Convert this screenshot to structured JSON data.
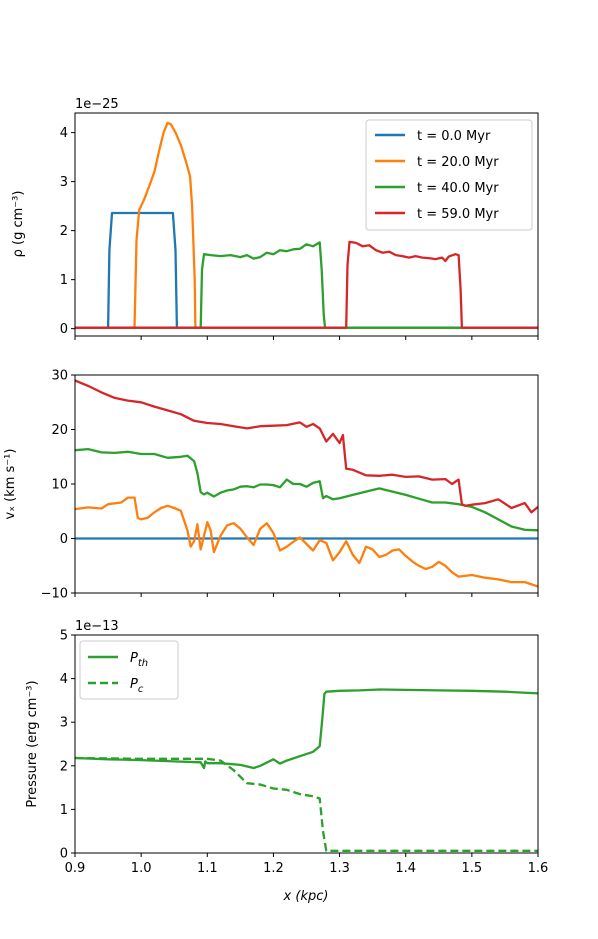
{
  "colors": {
    "blue": "#1f77b4",
    "orange": "#ff7f0e",
    "green": "#2ca02c",
    "red": "#d62728"
  },
  "xaxis": {
    "label": "x (kpc)",
    "ticks": [
      "0.9",
      "1.0",
      "1.1",
      "1.2",
      "1.3",
      "1.4",
      "1.5",
      "1.6"
    ],
    "lim": [
      0.9,
      1.6
    ]
  },
  "chart_data": [
    {
      "type": "line",
      "ylabel": "ρ (g cm⁻³)",
      "offset_text": "1e−25",
      "ylim": [
        -0.15,
        4.4
      ],
      "yticks": [
        0,
        1,
        2,
        3,
        4
      ],
      "ytick_labels": [
        "0",
        "1",
        "2",
        "3",
        "4"
      ],
      "grid": false,
      "legend_position": "upper right",
      "series": [
        {
          "name": "t = 0.0 Myr",
          "color": "#1f77b4",
          "style": "solid",
          "x": [
            0.9,
            0.95,
            0.952,
            0.956,
            1.048,
            1.052,
            1.054,
            1.6
          ],
          "y": [
            0.02,
            0.02,
            1.6,
            2.36,
            2.36,
            1.6,
            0.02,
            0.02
          ]
        },
        {
          "name": "t = 20.0 Myr",
          "color": "#ff7f0e",
          "style": "solid",
          "x": [
            0.9,
            0.99,
            0.993,
            0.997,
            1.005,
            1.012,
            1.02,
            1.027,
            1.034,
            1.04,
            1.045,
            1.052,
            1.06,
            1.068,
            1.074,
            1.077,
            1.081,
            1.082,
            1.6
          ],
          "y": [
            0.02,
            0.02,
            1.8,
            2.42,
            2.65,
            2.9,
            3.2,
            3.62,
            4.0,
            4.2,
            4.17,
            4.0,
            3.75,
            3.4,
            3.1,
            2.5,
            1.0,
            0.02,
            0.02
          ]
        },
        {
          "name": "t = 40.0 Myr",
          "color": "#2ca02c",
          "style": "solid",
          "x": [
            0.9,
            1.09,
            1.092,
            1.095,
            1.105,
            1.12,
            1.135,
            1.15,
            1.16,
            1.17,
            1.18,
            1.19,
            1.2,
            1.21,
            1.22,
            1.23,
            1.24,
            1.25,
            1.26,
            1.27,
            1.273,
            1.276,
            1.278,
            1.6
          ],
          "y": [
            0.02,
            0.02,
            1.2,
            1.52,
            1.5,
            1.48,
            1.5,
            1.46,
            1.5,
            1.43,
            1.46,
            1.55,
            1.52,
            1.6,
            1.58,
            1.62,
            1.63,
            1.72,
            1.68,
            1.76,
            1.2,
            0.3,
            0.02,
            0.02
          ]
        },
        {
          "name": "t = 59.0 Myr",
          "color": "#d62728",
          "style": "solid",
          "x": [
            0.9,
            1.31,
            1.312,
            1.315,
            1.325,
            1.335,
            1.345,
            1.355,
            1.365,
            1.375,
            1.385,
            1.395,
            1.405,
            1.415,
            1.425,
            1.435,
            1.445,
            1.455,
            1.46,
            1.465,
            1.475,
            1.48,
            1.483,
            1.485,
            1.6
          ],
          "y": [
            0.02,
            0.02,
            1.3,
            1.77,
            1.75,
            1.68,
            1.7,
            1.6,
            1.55,
            1.57,
            1.5,
            1.48,
            1.45,
            1.48,
            1.45,
            1.44,
            1.42,
            1.45,
            1.38,
            1.47,
            1.52,
            1.5,
            0.8,
            0.02,
            0.02
          ]
        }
      ]
    },
    {
      "type": "line",
      "ylabel": "vₓ (km s⁻¹)",
      "ylim": [
        -10,
        30
      ],
      "yticks": [
        -10,
        0,
        10,
        20,
        30
      ],
      "ytick_labels": [
        "−10",
        "0",
        "10",
        "20",
        "30"
      ],
      "grid": false,
      "series": [
        {
          "color": "#1f77b4",
          "style": "solid",
          "x": [
            0.9,
            1.6
          ],
          "y": [
            0,
            0
          ]
        },
        {
          "color": "#ff7f0e",
          "style": "solid",
          "x": [
            0.9,
            0.92,
            0.94,
            0.95,
            0.97,
            0.98,
            0.99,
            0.995,
            1.0,
            1.01,
            1.02,
            1.03,
            1.04,
            1.05,
            1.06,
            1.07,
            1.075,
            1.08,
            1.085,
            1.09,
            1.095,
            1.1,
            1.105,
            1.11,
            1.12,
            1.13,
            1.14,
            1.15,
            1.16,
            1.17,
            1.18,
            1.19,
            1.2,
            1.21,
            1.22,
            1.23,
            1.24,
            1.25,
            1.26,
            1.27,
            1.28,
            1.29,
            1.3,
            1.31,
            1.32,
            1.33,
            1.34,
            1.35,
            1.36,
            1.37,
            1.38,
            1.39,
            1.4,
            1.41,
            1.42,
            1.43,
            1.44,
            1.45,
            1.46,
            1.47,
            1.48,
            1.5,
            1.52,
            1.54,
            1.56,
            1.58,
            1.6
          ],
          "y": [
            5.4,
            5.7,
            5.5,
            6.3,
            6.6,
            7.5,
            7.5,
            3.8,
            3.5,
            3.8,
            4.8,
            5.6,
            6.0,
            5.6,
            5.1,
            1.5,
            -1.5,
            -0.5,
            2.6,
            -2.0,
            0.5,
            3.0,
            1.5,
            -2.5,
            0.5,
            2.4,
            2.8,
            1.8,
            0.2,
            -1.2,
            1.8,
            2.8,
            1.0,
            -2.2,
            -1.5,
            -0.6,
            0.2,
            -1.0,
            -2.2,
            -0.3,
            -0.8,
            -4.0,
            -2.5,
            -0.5,
            -3.0,
            -4.5,
            -1.5,
            -2.0,
            -3.4,
            -3.0,
            -2.2,
            -2.0,
            -3.2,
            -4.2,
            -5.0,
            -5.6,
            -5.2,
            -4.3,
            -5.0,
            -6.2,
            -7.0,
            -6.7,
            -7.2,
            -7.5,
            -8.0,
            -8.0,
            -8.8
          ]
        },
        {
          "color": "#2ca02c",
          "style": "solid",
          "x": [
            0.9,
            0.92,
            0.94,
            0.96,
            0.98,
            1.0,
            1.02,
            1.04,
            1.06,
            1.07,
            1.08,
            1.085,
            1.09,
            1.095,
            1.1,
            1.11,
            1.12,
            1.13,
            1.14,
            1.15,
            1.16,
            1.17,
            1.18,
            1.19,
            1.2,
            1.21,
            1.22,
            1.23,
            1.24,
            1.25,
            1.26,
            1.27,
            1.275,
            1.28,
            1.29,
            1.3,
            1.32,
            1.34,
            1.36,
            1.38,
            1.4,
            1.42,
            1.44,
            1.46,
            1.48,
            1.5,
            1.52,
            1.54,
            1.56,
            1.58,
            1.6
          ],
          "y": [
            16.2,
            16.4,
            15.8,
            15.7,
            15.9,
            15.5,
            15.5,
            14.8,
            15.0,
            15.2,
            14.2,
            12.0,
            8.5,
            8.1,
            8.4,
            7.7,
            8.4,
            8.8,
            9.0,
            9.5,
            9.6,
            9.4,
            9.9,
            9.9,
            9.8,
            9.4,
            10.8,
            10.0,
            10.0,
            9.5,
            10.2,
            10.5,
            7.4,
            7.8,
            7.2,
            7.4,
            8.0,
            8.6,
            9.2,
            8.6,
            8.0,
            7.3,
            6.6,
            6.6,
            6.3,
            5.8,
            4.8,
            3.5,
            2.2,
            1.6,
            1.5
          ]
        },
        {
          "color": "#d62728",
          "style": "solid",
          "x": [
            0.9,
            0.92,
            0.94,
            0.96,
            0.98,
            1.0,
            1.02,
            1.04,
            1.06,
            1.08,
            1.1,
            1.12,
            1.14,
            1.16,
            1.18,
            1.2,
            1.22,
            1.24,
            1.25,
            1.26,
            1.27,
            1.28,
            1.29,
            1.3,
            1.305,
            1.31,
            1.32,
            1.34,
            1.36,
            1.38,
            1.4,
            1.42,
            1.44,
            1.46,
            1.47,
            1.48,
            1.485,
            1.49,
            1.5,
            1.52,
            1.54,
            1.56,
            1.58,
            1.59,
            1.6
          ],
          "y": [
            29.0,
            28.0,
            26.8,
            25.8,
            25.3,
            25.0,
            24.2,
            23.5,
            22.8,
            21.6,
            21.2,
            21.0,
            20.6,
            20.2,
            20.6,
            20.7,
            20.8,
            21.3,
            20.5,
            21.0,
            20.2,
            17.8,
            19.2,
            17.5,
            19.0,
            12.8,
            12.6,
            11.6,
            11.5,
            11.7,
            11.3,
            11.4,
            10.8,
            10.9,
            10.0,
            10.8,
            6.3,
            6.0,
            6.2,
            6.5,
            7.2,
            5.6,
            6.5,
            4.8,
            5.8
          ]
        }
      ]
    },
    {
      "type": "line",
      "ylabel": "Pressure (erg cm⁻³)",
      "offset_text": "1e−13",
      "ylim": [
        0,
        5
      ],
      "yticks": [
        0,
        1,
        2,
        3,
        4,
        5
      ],
      "ytick_labels": [
        "0",
        "1",
        "2",
        "3",
        "4",
        "5"
      ],
      "grid": false,
      "legend_position": "upper left",
      "series": [
        {
          "name": "Pth",
          "color": "#2ca02c",
          "style": "solid",
          "x": [
            0.9,
            0.95,
            1.0,
            1.05,
            1.09,
            1.095,
            1.097,
            1.1,
            1.12,
            1.15,
            1.17,
            1.18,
            1.2,
            1.21,
            1.22,
            1.24,
            1.26,
            1.27,
            1.274,
            1.277,
            1.28,
            1.3,
            1.33,
            1.36,
            1.4,
            1.45,
            1.5,
            1.55,
            1.6
          ],
          "y": [
            2.18,
            2.15,
            2.13,
            2.1,
            2.08,
            1.95,
            2.1,
            2.06,
            2.06,
            2.02,
            1.95,
            2.0,
            2.15,
            2.05,
            2.12,
            2.22,
            2.32,
            2.45,
            3.1,
            3.65,
            3.7,
            3.72,
            3.73,
            3.75,
            3.74,
            3.73,
            3.72,
            3.7,
            3.66
          ]
        },
        {
          "name": "Pc",
          "color": "#2ca02c",
          "style": "dashed",
          "x": [
            0.9,
            0.95,
            1.0,
            1.05,
            1.1,
            1.12,
            1.14,
            1.16,
            1.18,
            1.2,
            1.22,
            1.24,
            1.26,
            1.27,
            1.275,
            1.28,
            1.3,
            1.6
          ],
          "y": [
            2.18,
            2.17,
            2.16,
            2.16,
            2.16,
            2.12,
            1.9,
            1.6,
            1.57,
            1.48,
            1.45,
            1.35,
            1.3,
            1.25,
            0.5,
            0.05,
            0.05,
            0.05
          ]
        }
      ]
    }
  ],
  "legends": {
    "top": [
      "t = 0.0 Myr",
      "t = 20.0 Myr",
      "t = 40.0 Myr",
      "t = 59.0 Myr"
    ],
    "bottom": [
      "P",
      "P"
    ],
    "bottom_subscripts": [
      "th",
      "c"
    ]
  }
}
